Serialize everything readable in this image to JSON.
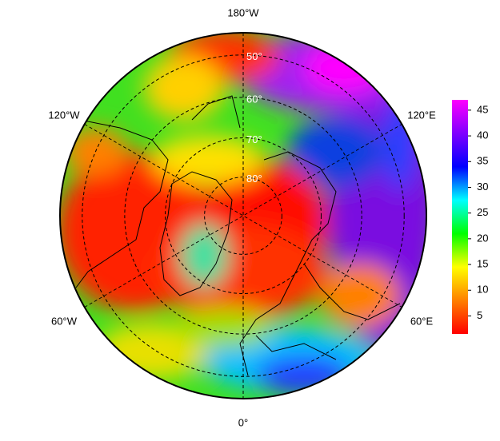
{
  "map": {
    "projection": "polar stereographic",
    "boundary_lat": 45,
    "parallels": [
      {
        "value": 50,
        "label": "50°"
      },
      {
        "value": 60,
        "label": "60°"
      },
      {
        "value": 70,
        "label": "70°"
      },
      {
        "value": 80,
        "label": "80°"
      }
    ],
    "meridian_labels": {
      "top": "180°W",
      "upper_left": "120°W",
      "upper_right": "120°E",
      "lower_left": "60°W",
      "lower_right": "60°E",
      "bottom": "0°"
    }
  },
  "colorbar": {
    "lim": [
      1.5,
      47
    ],
    "ticks": [
      5,
      10,
      15,
      20,
      25,
      30,
      35,
      40,
      45
    ],
    "colormap": [
      "#ff0000",
      "#ff8000",
      "#ffff00",
      "#00ff00",
      "#00ffff",
      "#0000ff",
      "#8000ff",
      "#ff00ff"
    ]
  }
}
